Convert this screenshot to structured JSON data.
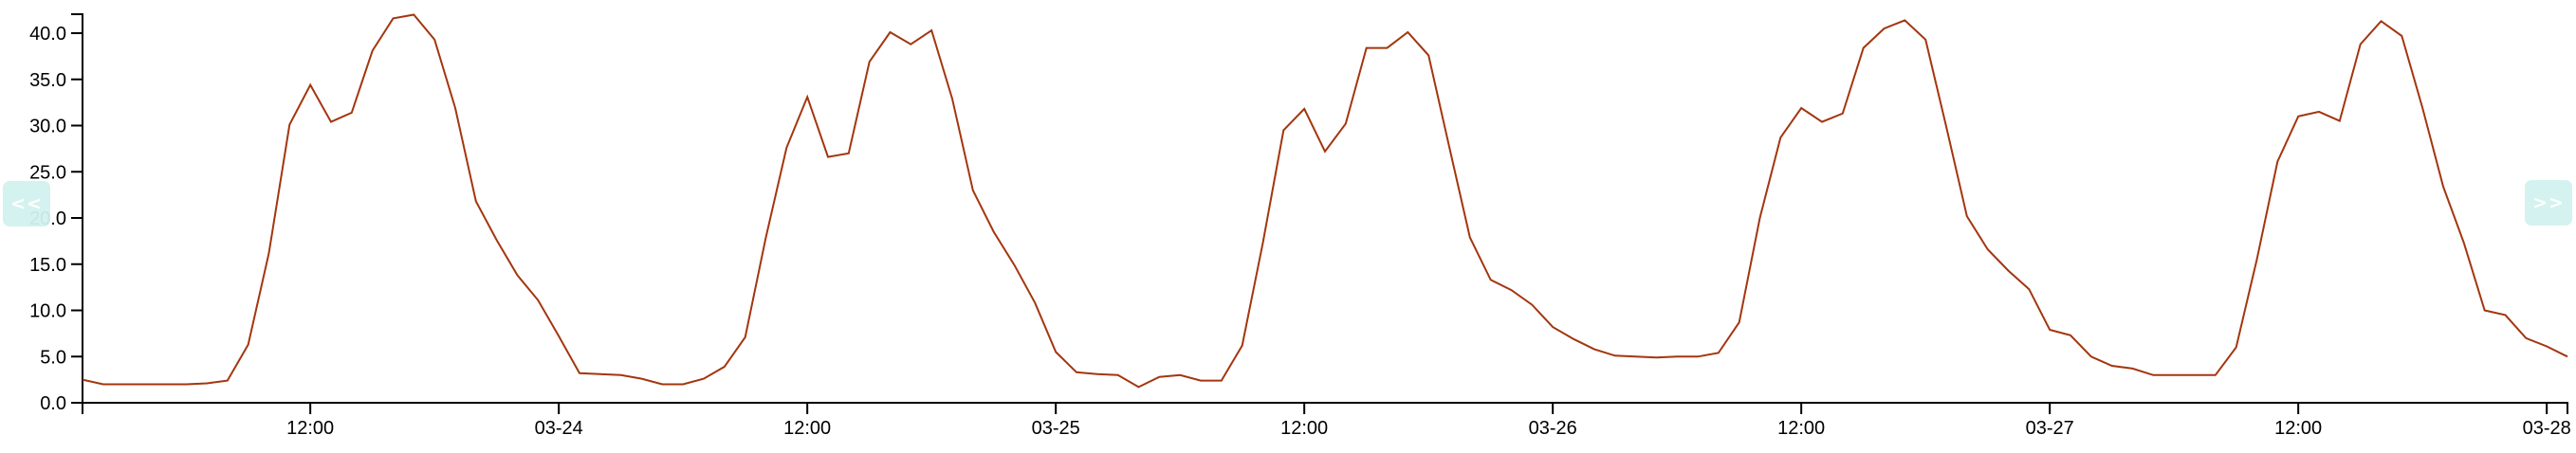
{
  "nav": {
    "prev_label": "<<",
    "next_label": ">>"
  },
  "chart_data": {
    "type": "line",
    "title": "",
    "xlabel": "",
    "ylabel": "",
    "ylim": [
      0,
      42
    ],
    "grid": false,
    "line_color": "#a3360f",
    "y_ticks": [
      "0.0",
      "5.0",
      "10.0",
      "15.0",
      "20.0",
      "25.0",
      "30.0",
      "35.0",
      "40.0"
    ],
    "x_ticks": [
      {
        "at": "03-23 12:00",
        "label": "12:00"
      },
      {
        "at": "03-24 00:00",
        "label": "03-24"
      },
      {
        "at": "03-24 12:00",
        "label": "12:00"
      },
      {
        "at": "03-25 00:00",
        "label": "03-25"
      },
      {
        "at": "03-25 12:00",
        "label": "12:00"
      },
      {
        "at": "03-26 00:00",
        "label": "03-26"
      },
      {
        "at": "03-26 12:00",
        "label": "12:00"
      },
      {
        "at": "03-27 00:00",
        "label": "03-27"
      },
      {
        "at": "03-27 12:00",
        "label": "12:00"
      },
      {
        "at": "03-28 00:00",
        "label": "03-28"
      }
    ],
    "x": [
      "03-23 01:00",
      "03-23 02:00",
      "03-23 03:00",
      "03-23 04:00",
      "03-23 05:00",
      "03-23 06:00",
      "03-23 07:00",
      "03-23 08:00",
      "03-23 09:00",
      "03-23 10:00",
      "03-23 11:00",
      "03-23 12:00",
      "03-23 13:00",
      "03-23 14:00",
      "03-23 15:00",
      "03-23 16:00",
      "03-23 17:00",
      "03-23 18:00",
      "03-23 19:00",
      "03-23 20:00",
      "03-23 21:00",
      "03-23 22:00",
      "03-23 23:00",
      "03-24 00:00",
      "03-24 01:00",
      "03-24 02:00",
      "03-24 03:00",
      "03-24 04:00",
      "03-24 05:00",
      "03-24 06:00",
      "03-24 07:00",
      "03-24 08:00",
      "03-24 09:00",
      "03-24 10:00",
      "03-24 11:00",
      "03-24 12:00",
      "03-24 13:00",
      "03-24 14:00",
      "03-24 15:00",
      "03-24 16:00",
      "03-24 17:00",
      "03-24 18:00",
      "03-24 19:00",
      "03-24 20:00",
      "03-24 21:00",
      "03-24 22:00",
      "03-24 23:00",
      "03-25 00:00",
      "03-25 01:00",
      "03-25 02:00",
      "03-25 03:00",
      "03-25 04:00",
      "03-25 05:00",
      "03-25 06:00",
      "03-25 07:00",
      "03-25 08:00",
      "03-25 09:00",
      "03-25 10:00",
      "03-25 11:00",
      "03-25 12:00",
      "03-25 13:00",
      "03-25 14:00",
      "03-25 15:00",
      "03-25 16:00",
      "03-25 17:00",
      "03-25 18:00",
      "03-25 19:00",
      "03-25 20:00",
      "03-25 21:00",
      "03-25 22:00",
      "03-25 23:00",
      "03-26 00:00",
      "03-26 01:00",
      "03-26 02:00",
      "03-26 03:00",
      "03-26 04:00",
      "03-26 05:00",
      "03-26 06:00",
      "03-26 07:00",
      "03-26 08:00",
      "03-26 09:00",
      "03-26 10:00",
      "03-26 11:00",
      "03-26 12:00",
      "03-26 13:00",
      "03-26 14:00",
      "03-26 15:00",
      "03-26 16:00",
      "03-26 17:00",
      "03-26 18:00",
      "03-26 19:00",
      "03-26 20:00",
      "03-26 21:00",
      "03-26 22:00",
      "03-26 23:00",
      "03-27 00:00",
      "03-27 01:00",
      "03-27 02:00",
      "03-27 03:00",
      "03-27 04:00",
      "03-27 05:00",
      "03-27 06:00",
      "03-27 07:00",
      "03-27 08:00",
      "03-27 09:00",
      "03-27 10:00",
      "03-27 11:00",
      "03-27 12:00",
      "03-27 13:00",
      "03-27 14:00",
      "03-27 15:00",
      "03-27 16:00",
      "03-27 17:00",
      "03-27 18:00",
      "03-27 19:00",
      "03-27 20:00",
      "03-27 21:00",
      "03-27 22:00",
      "03-27 23:00",
      "03-28 00:00",
      "03-28 01:00"
    ],
    "series": [
      {
        "values": [
          2.5,
          2.0,
          2.0,
          2.0,
          2.0,
          2.0,
          2.1,
          2.4,
          6.3,
          16.2,
          30.1,
          34.4,
          30.4,
          31.4,
          38.1,
          41.6,
          42.0,
          39.3,
          31.9,
          21.8,
          17.6,
          13.8,
          11.1,
          7.2,
          3.2,
          3.1,
          3.0,
          2.6,
          2.0,
          2.0,
          2.6,
          3.9,
          7.1,
          17.9,
          27.6,
          33.1,
          26.6,
          27.0,
          36.9,
          40.1,
          38.8,
          40.3,
          32.9,
          23.0,
          18.5,
          14.9,
          10.8,
          5.5,
          3.3,
          3.1,
          3.0,
          1.7,
          2.8,
          3.0,
          2.4,
          2.4,
          6.2,
          17.3,
          29.5,
          31.8,
          27.2,
          30.2,
          38.4,
          38.4,
          40.1,
          37.6,
          27.7,
          17.9,
          13.3,
          12.2,
          10.6,
          8.2,
          6.9,
          5.8,
          5.1,
          5.0,
          4.9,
          5.0,
          5.0,
          5.4,
          8.7,
          20.0,
          28.7,
          31.9,
          30.4,
          31.3,
          38.4,
          40.5,
          41.4,
          39.3,
          29.9,
          20.2,
          16.6,
          14.3,
          12.3,
          7.9,
          7.3,
          5.0,
          4.0,
          3.7,
          3.0,
          3.0,
          3.0,
          3.0,
          6.0,
          15.5,
          26.1,
          31.0,
          31.5,
          30.5,
          38.8,
          41.3,
          39.7,
          31.9,
          23.4,
          17.3,
          10.0,
          9.5,
          7.0,
          6.1,
          5.0
        ]
      }
    ]
  }
}
